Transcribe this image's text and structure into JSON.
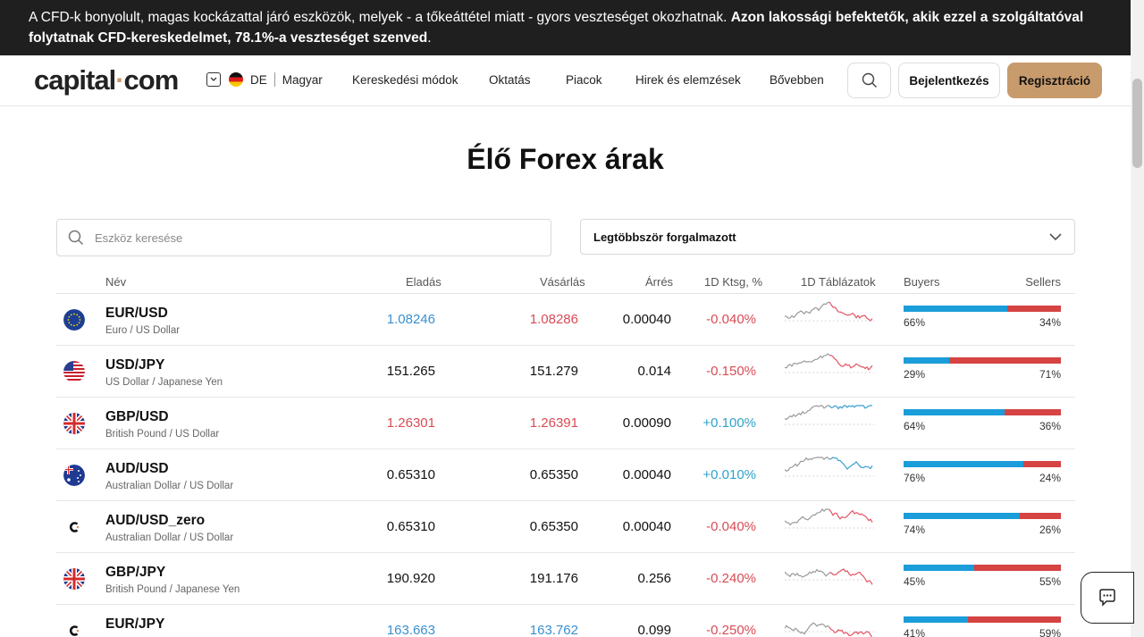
{
  "banner": {
    "text_plain": "A CFD-k bonyolult, magas kockázattal járó eszközök, melyek - a tőkeáttétel miatt - gyors veszteséget okozhatnak.",
    "text_bold": "Azon lakossági befektetők, akik ezzel a szolgáltatóval folytatnak CFD-kereskedelmet, 78.1%-a veszteséget szenved",
    "text_end": "."
  },
  "header": {
    "logo_main": "capital",
    "logo_dot": "·",
    "logo_end": "com",
    "lang_code": "DE",
    "lang_name": "Magyar",
    "nav": [
      "Kereskedési módok",
      "Oktatás",
      "Piacok",
      "Hirek és elemzések",
      "Bővebben"
    ],
    "login_label": "Bejelentkezés",
    "register_label": "Regisztráció"
  },
  "page": {
    "title": "Élő Forex árak",
    "search_placeholder": "Eszköz keresése",
    "sort_selected": "Legtöbbször forgalmazott"
  },
  "table": {
    "headers": {
      "name": "Név",
      "sell": "Eladás",
      "buy": "Vásárlás",
      "spread": "Árrés",
      "change": "1D Ktsg, %",
      "chart": "1D Táblázatok",
      "buyers": "Buyers",
      "sellers": "Sellers"
    },
    "rows": [
      {
        "symbol": "EUR/USD",
        "desc": "Euro / US Dollar",
        "sell": "1.08246",
        "sell_color": "blue",
        "buy": "1.08286",
        "buy_color": "red",
        "spread": "0.00040",
        "change": "-0.040%",
        "change_color": "red",
        "trend": "down",
        "buyers_pct": 66,
        "buyers": "66%",
        "sellers": "34%",
        "flag": "eu"
      },
      {
        "symbol": "USD/JPY",
        "desc": "US Dollar / Japanese Yen",
        "sell": "151.265",
        "sell_color": "black",
        "buy": "151.279",
        "buy_color": "black",
        "spread": "0.014",
        "change": "-0.150%",
        "change_color": "red",
        "trend": "down",
        "buyers_pct": 29,
        "buyers": "29%",
        "sellers": "71%",
        "flag": "us"
      },
      {
        "symbol": "GBP/USD",
        "desc": "British Pound / US Dollar",
        "sell": "1.26301",
        "sell_color": "red",
        "buy": "1.26391",
        "buy_color": "red",
        "spread": "0.00090",
        "change": "+0.100%",
        "change_color": "teal",
        "trend": "up",
        "buyers_pct": 64,
        "buyers": "64%",
        "sellers": "36%",
        "flag": "uk"
      },
      {
        "symbol": "AUD/USD",
        "desc": "Australian Dollar / US Dollar",
        "sell": "0.65310",
        "sell_color": "black",
        "buy": "0.65350",
        "buy_color": "black",
        "spread": "0.00040",
        "change": "+0.010%",
        "change_color": "teal",
        "trend": "up",
        "buyers_pct": 76,
        "buyers": "76%",
        "sellers": "24%",
        "flag": "au"
      },
      {
        "symbol": "AUD/USD_zero",
        "desc": "Australian Dollar / US Dollar",
        "sell": "0.65310",
        "sell_color": "black",
        "buy": "0.65350",
        "buy_color": "black",
        "spread": "0.00040",
        "change": "-0.040%",
        "change_color": "red",
        "trend": "down",
        "buyers_pct": 74,
        "buyers": "74%",
        "sellers": "26%",
        "flag": "capital"
      },
      {
        "symbol": "GBP/JPY",
        "desc": "British Pound / Japanese Yen",
        "sell": "190.920",
        "sell_color": "black",
        "buy": "191.176",
        "buy_color": "black",
        "spread": "0.256",
        "change": "-0.240%",
        "change_color": "red",
        "trend": "down",
        "buyers_pct": 45,
        "buyers": "45%",
        "sellers": "55%",
        "flag": "uk"
      },
      {
        "symbol": "EUR/JPY",
        "desc": "",
        "sell": "163.663",
        "sell_color": "blue",
        "buy": "163.762",
        "buy_color": "blue",
        "spread": "0.099",
        "change": "-0.250%",
        "change_color": "red",
        "trend": "down",
        "buyers_pct": 41,
        "buyers": "41%",
        "sellers": "59%",
        "flag": "capital"
      }
    ]
  },
  "colors": {
    "accent": "#c89b6d",
    "buyers_bar": "#1a9dd9",
    "sellers_bar": "#d54343"
  }
}
